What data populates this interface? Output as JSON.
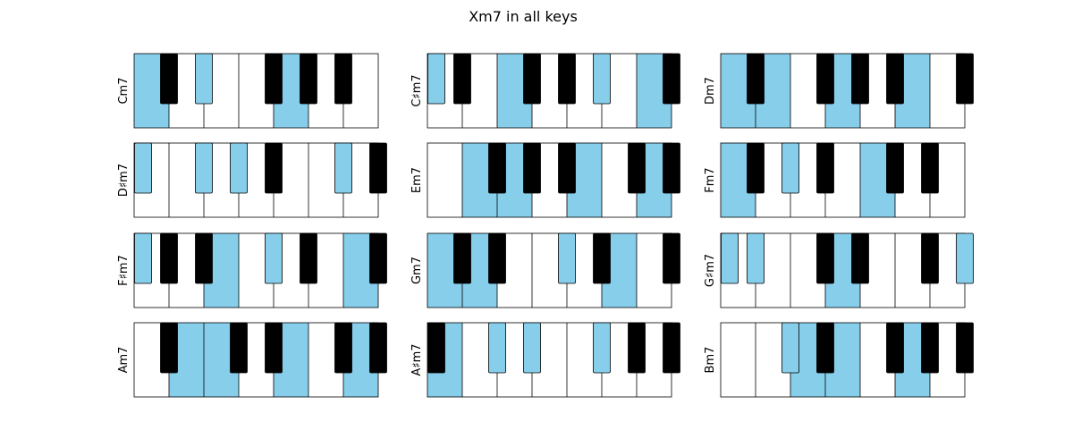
{
  "figure": {
    "title": "Xm7 in all keys"
  },
  "colors": {
    "highlight": "#87ceeb",
    "white_key": "#ffffff",
    "black_key": "#000000",
    "key_outline": "#000000"
  },
  "keyboard": {
    "notes_in_order": [
      "C",
      "C#",
      "D",
      "D#",
      "E",
      "F",
      "F#",
      "G",
      "G#",
      "A",
      "A#",
      "B"
    ],
    "white_keys_per_panel": 7
  },
  "panels": [
    {
      "label": "Cm7",
      "start_note": "C",
      "highlighted_white": [
        0,
        4
      ],
      "highlighted_black": [
        1,
        5
      ]
    },
    {
      "label": "C♯m7",
      "start_note": "C#",
      "highlighted_white": [
        2,
        6
      ],
      "highlighted_black": [
        0,
        4
      ]
    },
    {
      "label": "Dm7",
      "start_note": "D",
      "highlighted_white": [
        0,
        1,
        3,
        5
      ],
      "highlighted_black": []
    },
    {
      "label": "D♯m7",
      "start_note": "D#",
      "highlighted_white": [],
      "highlighted_black": [
        0,
        1,
        2,
        4
      ]
    },
    {
      "label": "Em7",
      "start_note": "E",
      "highlighted_white": [
        1,
        2,
        4,
        6
      ],
      "highlighted_black": []
    },
    {
      "label": "Fm7",
      "start_note": "F",
      "highlighted_white": [
        0,
        4
      ],
      "highlighted_black": [
        1,
        5
      ]
    },
    {
      "label": "F♯m7",
      "start_note": "F#",
      "highlighted_white": [
        2,
        6
      ],
      "highlighted_black": [
        0,
        3
      ]
    },
    {
      "label": "Gm7",
      "start_note": "G",
      "highlighted_white": [
        0,
        1,
        5
      ],
      "highlighted_black": [
        2
      ]
    },
    {
      "label": "G♯m7",
      "start_note": "G#",
      "highlighted_white": [
        3
      ],
      "highlighted_black": [
        0,
        1,
        5
      ]
    },
    {
      "label": "Am7",
      "start_note": "A",
      "highlighted_white": [
        1,
        2,
        4,
        6
      ],
      "highlighted_black": []
    },
    {
      "label": "A♯m7",
      "start_note": "A#",
      "highlighted_white": [
        0
      ],
      "highlighted_black": [
        1,
        2,
        3
      ]
    },
    {
      "label": "Bm7",
      "start_note": "B",
      "highlighted_white": [
        2,
        3,
        5
      ],
      "highlighted_black": [
        0
      ]
    }
  ]
}
